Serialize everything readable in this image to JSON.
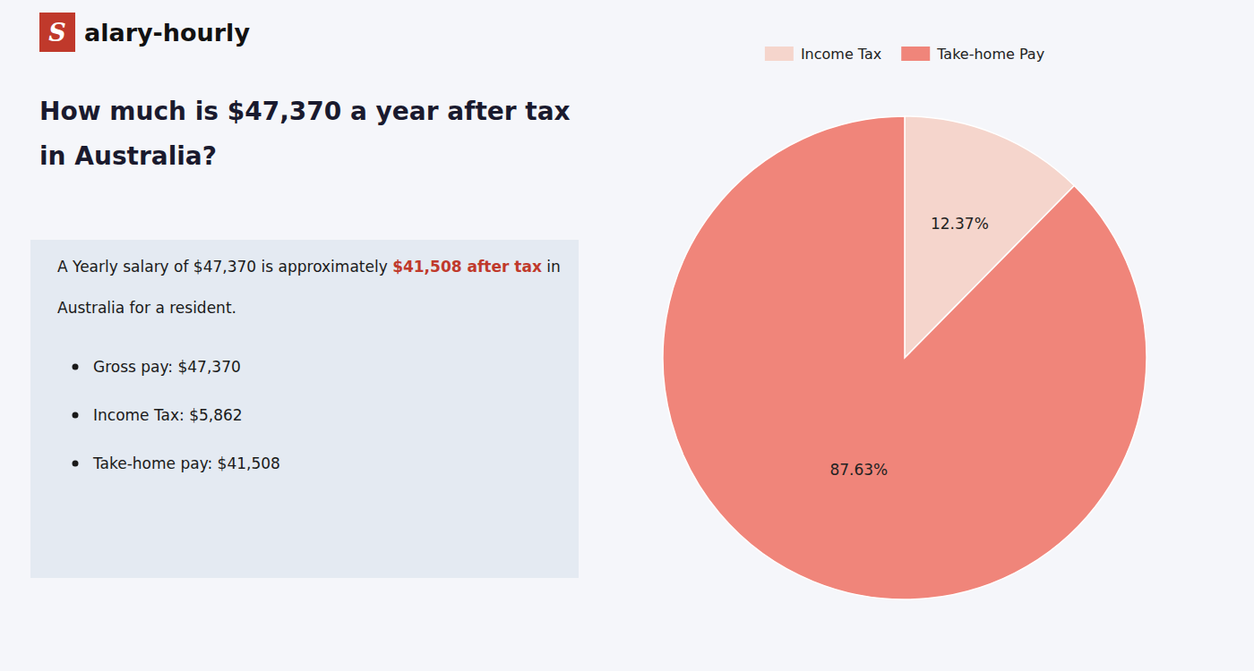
{
  "chart_data": {
    "type": "pie",
    "title": "How much is $47,370 a year after tax in Australia?",
    "categories": [
      "Income Tax",
      "Take-home Pay"
    ],
    "values": [
      12.37,
      87.63
    ],
    "value_labels": [
      "12.37%",
      "87.63%"
    ],
    "colors": [
      "#f5d5cc",
      "#f0857a"
    ],
    "data_labels": true,
    "legend": "top",
    "annotations": [
      [
        {
          "text": "S",
          "color": "#c0392b"
        },
        {
          "text": "alary-hourly"
        }
      ],
      [
        {
          "text": "A Yearly salary of $47,370 is approximately "
        },
        {
          "text": "$41,508 after tax",
          "color": "#c0392b"
        },
        {
          "text": " in"
        }
      ],
      [
        {
          "text": "Australia for a resident."
        }
      ],
      [
        {
          "text": "Gross pay: $47,370"
        }
      ],
      [
        {
          "text": "Income Tax: $5,862"
        }
      ],
      [
        {
          "text": "Take-home pay: $41,508"
        }
      ]
    ]
  }
}
